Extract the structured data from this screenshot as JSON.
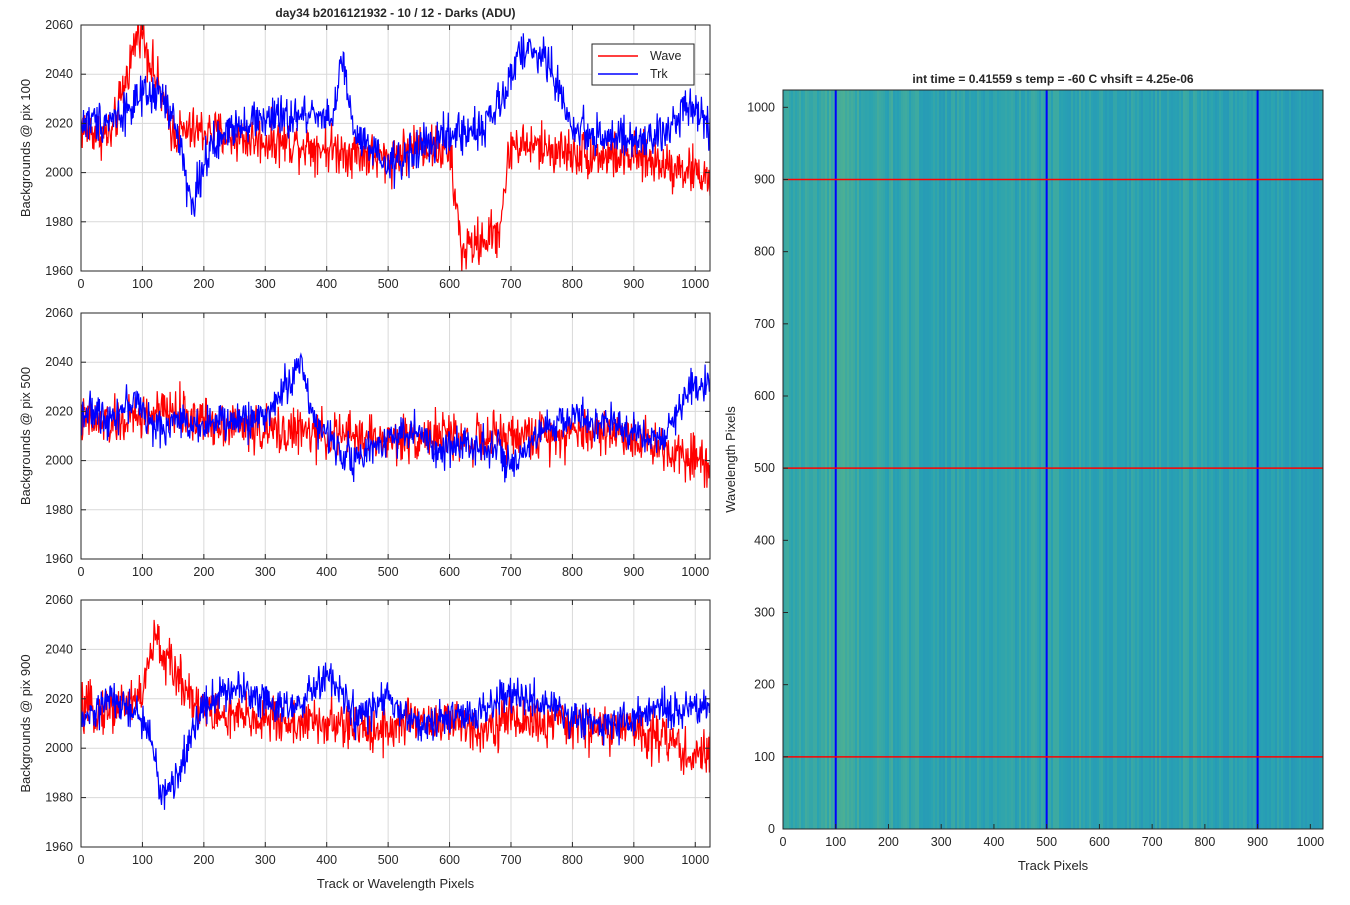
{
  "figure_title": "day34 b2016121932 - 10 / 12 - Darks (ADU)",
  "colors": {
    "wave": "#ff0000",
    "trk": "#0000ff",
    "grid": "#d9d9d9",
    "axis": "#262626"
  },
  "chart_data": [
    {
      "type": "line",
      "title": "day34 b2016121932 - 10 / 12 - Darks (ADU)",
      "xlabel": "",
      "ylabel": "Backgrounds @ pix 100",
      "xlim": [
        0,
        1024
      ],
      "ylim": [
        1960,
        2060
      ],
      "xticks": [
        0,
        100,
        200,
        300,
        400,
        500,
        600,
        700,
        800,
        900,
        1000
      ],
      "yticks": [
        1960,
        1980,
        2000,
        2020,
        2040,
        2060
      ],
      "grid": true,
      "legend": {
        "placement": "top-right",
        "entries": [
          "Wave",
          "Trk"
        ]
      },
      "series": [
        {
          "name": "Wave",
          "color": "#ff0000",
          "mean": 2014,
          "spread": 9,
          "points": [
            [
              0,
              2018
            ],
            [
              50,
              2015
            ],
            [
              95,
              2060
            ],
            [
              150,
              2016
            ],
            [
              200,
              2017
            ],
            [
              250,
              2014
            ],
            [
              300,
              2013
            ],
            [
              350,
              2012
            ],
            [
              400,
              2010
            ],
            [
              450,
              2008
            ],
            [
              500,
              2005
            ],
            [
              550,
              2012
            ],
            [
              600,
              2008
            ],
            [
              620,
              1968
            ],
            [
              680,
              1976
            ],
            [
              700,
              2012
            ],
            [
              750,
              2010
            ],
            [
              800,
              2008
            ],
            [
              850,
              2007
            ],
            [
              900,
              2006
            ],
            [
              950,
              2004
            ],
            [
              1000,
              2000
            ],
            [
              1024,
              1998
            ]
          ]
        },
        {
          "name": "Trk",
          "color": "#0000ff",
          "mean": 2020,
          "spread": 8,
          "points": [
            [
              0,
              2020
            ],
            [
              50,
              2022
            ],
            [
              100,
              2030
            ],
            [
              130,
              2032
            ],
            [
              160,
              2015
            ],
            [
              180,
              1985
            ],
            [
              200,
              2005
            ],
            [
              250,
              2020
            ],
            [
              300,
              2022
            ],
            [
              350,
              2022
            ],
            [
              380,
              2025
            ],
            [
              410,
              2022
            ],
            [
              425,
              2046
            ],
            [
              445,
              2015
            ],
            [
              500,
              2002
            ],
            [
              550,
              2010
            ],
            [
              600,
              2015
            ],
            [
              650,
              2018
            ],
            [
              690,
              2030
            ],
            [
              710,
              2050
            ],
            [
              760,
              2046
            ],
            [
              800,
              2018
            ],
            [
              850,
              2015
            ],
            [
              900,
              2012
            ],
            [
              950,
              2015
            ],
            [
              990,
              2030
            ],
            [
              1024,
              2018
            ]
          ]
        }
      ]
    },
    {
      "type": "line",
      "title": "",
      "xlabel": "",
      "ylabel": "Backgrounds @ pix 500",
      "xlim": [
        0,
        1024
      ],
      "ylim": [
        1960,
        2060
      ],
      "xticks": [
        0,
        100,
        200,
        300,
        400,
        500,
        600,
        700,
        800,
        900,
        1000
      ],
      "yticks": [
        1960,
        1980,
        2000,
        2020,
        2040,
        2060
      ],
      "grid": true,
      "series": [
        {
          "name": "Wave",
          "color": "#ff0000",
          "mean": 2014,
          "spread": 9,
          "points": [
            [
              0,
              2016
            ],
            [
              50,
              2015
            ],
            [
              100,
              2018
            ],
            [
              150,
              2020
            ],
            [
              200,
              2016
            ],
            [
              250,
              2015
            ],
            [
              300,
              2012
            ],
            [
              350,
              2012
            ],
            [
              400,
              2010
            ],
            [
              450,
              2010
            ],
            [
              500,
              2008
            ],
            [
              550,
              2010
            ],
            [
              600,
              2010
            ],
            [
              650,
              2008
            ],
            [
              700,
              2010
            ],
            [
              750,
              2010
            ],
            [
              800,
              2012
            ],
            [
              850,
              2012
            ],
            [
              900,
              2010
            ],
            [
              950,
              2005
            ],
            [
              1000,
              2002
            ],
            [
              1024,
              1998
            ]
          ]
        },
        {
          "name": "Trk",
          "color": "#0000ff",
          "mean": 2015,
          "spread": 7,
          "points": [
            [
              0,
              2020
            ],
            [
              50,
              2018
            ],
            [
              90,
              2025
            ],
            [
              120,
              2012
            ],
            [
              150,
              2016
            ],
            [
              200,
              2015
            ],
            [
              250,
              2016
            ],
            [
              300,
              2018
            ],
            [
              360,
              2040
            ],
            [
              380,
              2015
            ],
            [
              420,
              2005
            ],
            [
              450,
              2000
            ],
            [
              500,
              2010
            ],
            [
              550,
              2012
            ],
            [
              580,
              2002
            ],
            [
              620,
              2008
            ],
            [
              680,
              2005
            ],
            [
              700,
              1995
            ],
            [
              750,
              2012
            ],
            [
              800,
              2018
            ],
            [
              850,
              2015
            ],
            [
              900,
              2012
            ],
            [
              950,
              2008
            ],
            [
              990,
              2030
            ],
            [
              1024,
              2032
            ]
          ]
        }
      ]
    },
    {
      "type": "line",
      "title": "",
      "xlabel": "Track or Wavelength Pixels",
      "ylabel": "Backgrounds @ pix 900",
      "xlim": [
        0,
        1024
      ],
      "ylim": [
        1960,
        2060
      ],
      "xticks": [
        0,
        100,
        200,
        300,
        400,
        500,
        600,
        700,
        800,
        900,
        1000
      ],
      "yticks": [
        1960,
        1980,
        2000,
        2020,
        2040,
        2060
      ],
      "grid": true,
      "series": [
        {
          "name": "Wave",
          "color": "#ff0000",
          "mean": 2014,
          "spread": 9,
          "points": [
            [
              0,
              2015
            ],
            [
              50,
              2016
            ],
            [
              100,
              2022
            ],
            [
              120,
              2045
            ],
            [
              140,
              2035
            ],
            [
              200,
              2015
            ],
            [
              250,
              2012
            ],
            [
              300,
              2012
            ],
            [
              350,
              2010
            ],
            [
              400,
              2010
            ],
            [
              450,
              2008
            ],
            [
              500,
              2008
            ],
            [
              550,
              2012
            ],
            [
              600,
              2010
            ],
            [
              650,
              2008
            ],
            [
              700,
              2012
            ],
            [
              750,
              2010
            ],
            [
              800,
              2010
            ],
            [
              850,
              2008
            ],
            [
              900,
              2008
            ],
            [
              950,
              2005
            ],
            [
              1000,
              1995
            ],
            [
              1024,
              2000
            ]
          ]
        },
        {
          "name": "Trk",
          "color": "#0000ff",
          "mean": 2015,
          "spread": 7,
          "points": [
            [
              0,
              2010
            ],
            [
              50,
              2020
            ],
            [
              100,
              2012
            ],
            [
              120,
              1998
            ],
            [
              130,
              1980
            ],
            [
              150,
              1985
            ],
            [
              200,
              2018
            ],
            [
              250,
              2025
            ],
            [
              300,
              2020
            ],
            [
              350,
              2015
            ],
            [
              400,
              2030
            ],
            [
              450,
              2012
            ],
            [
              500,
              2020
            ],
            [
              550,
              2008
            ],
            [
              600,
              2012
            ],
            [
              650,
              2015
            ],
            [
              700,
              2022
            ],
            [
              750,
              2018
            ],
            [
              800,
              2012
            ],
            [
              850,
              2010
            ],
            [
              900,
              2012
            ],
            [
              950,
              2016
            ],
            [
              1000,
              2015
            ],
            [
              1024,
              2018
            ]
          ]
        }
      ]
    },
    {
      "type": "heatmap",
      "title": "int time = 0.41559 s    temp = -60 C    vhsift = 4.25e-06",
      "xlabel": "Track Pixels",
      "ylabel": "Wavelength Pixels",
      "xlim": [
        0,
        1024
      ],
      "ylim": [
        0,
        1024
      ],
      "xticks": [
        0,
        100,
        200,
        300,
        400,
        500,
        600,
        700,
        800,
        900,
        1000
      ],
      "yticks": [
        0,
        100,
        200,
        300,
        400,
        500,
        600,
        700,
        800,
        900,
        1000
      ],
      "base_color": "#2a9fb5",
      "vertical_markers": {
        "color": "#0000ff",
        "x": [
          100,
          500,
          900
        ]
      },
      "horizontal_markers": {
        "color": "#ff0000",
        "y": [
          100,
          500,
          900
        ]
      },
      "brightness_profile": [
        [
          0,
          0.6
        ],
        [
          60,
          0.62
        ],
        [
          100,
          0.7
        ],
        [
          160,
          0.6
        ],
        [
          300,
          0.5
        ],
        [
          400,
          0.5
        ],
        [
          520,
          0.55
        ],
        [
          620,
          0.5
        ],
        [
          700,
          0.48
        ],
        [
          760,
          0.55
        ],
        [
          800,
          0.5
        ],
        [
          900,
          0.45
        ],
        [
          1024,
          0.42
        ]
      ]
    }
  ]
}
